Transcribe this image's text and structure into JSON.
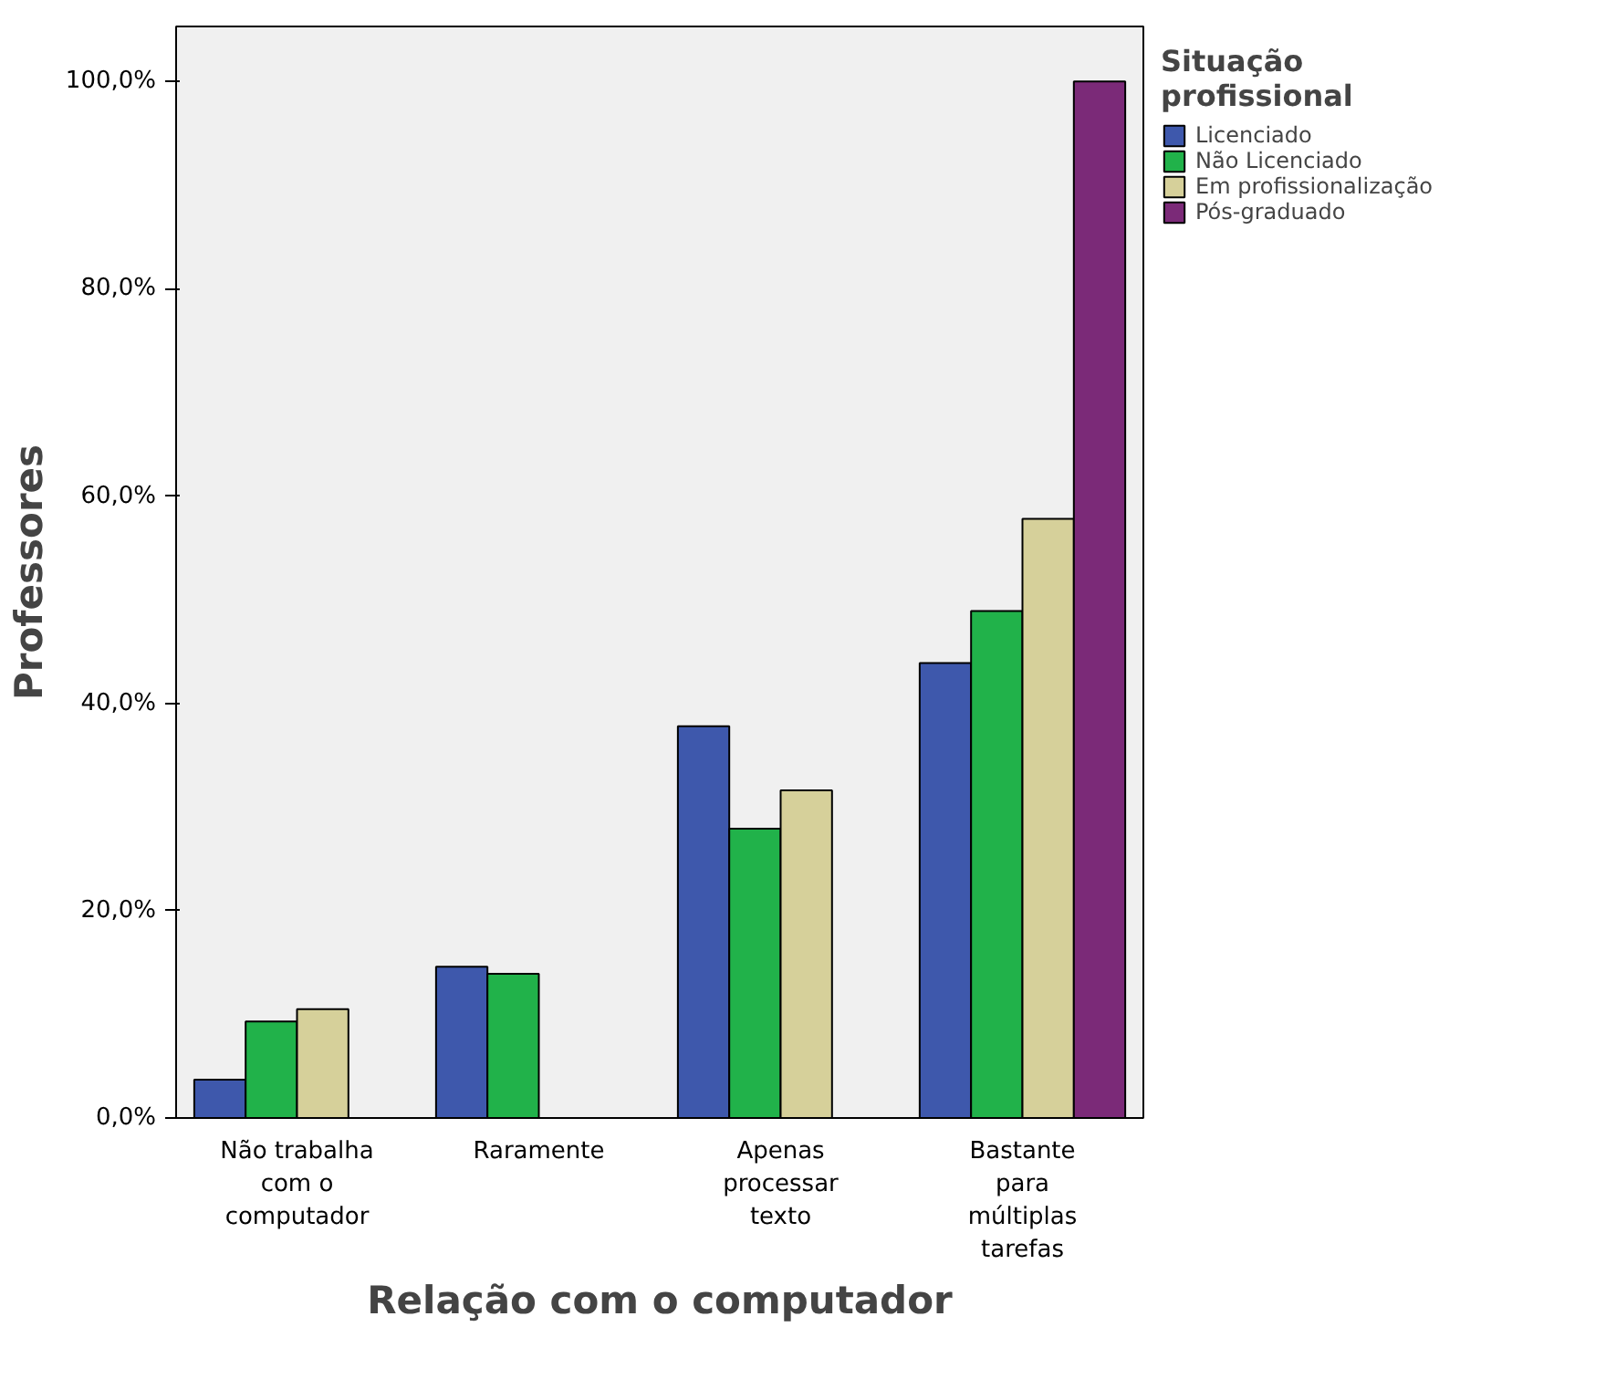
{
  "chart_data": {
    "type": "bar",
    "xlabel": "Relação com o computador",
    "ylabel": "Professores",
    "legend_title": "Situação\nprofissional",
    "categories": [
      "Não trabalha\ncom o\ncomputador",
      "Raramente",
      "Apenas\nprocessar\ntexto",
      "Bastante\npara\nmúltiplas\ntarefas"
    ],
    "series": [
      {
        "name": "Licenciado",
        "color": "#3e58ac",
        "values": [
          3.7,
          14.6,
          37.8,
          43.9
        ]
      },
      {
        "name": "Não Licenciado",
        "color": "#21b24a",
        "values": [
          9.3,
          13.9,
          27.9,
          48.9
        ]
      },
      {
        "name": "Em profissionalização",
        "color": "#d6d09a",
        "values": [
          10.5,
          null,
          31.6,
          57.8
        ]
      },
      {
        "name": "Pós-graduado",
        "color": "#7b2a78",
        "values": [
          null,
          null,
          null,
          100.0
        ]
      }
    ],
    "ylim": [
      0,
      105.3
    ],
    "yticks": [
      {
        "value": 0,
        "label": "0,0%"
      },
      {
        "value": 20,
        "label": "20,0%"
      },
      {
        "value": 40,
        "label": "40,0%"
      },
      {
        "value": 60,
        "label": "60,0%"
      },
      {
        "value": 80,
        "label": "80,0%"
      },
      {
        "value": 100,
        "label": "100,0%"
      }
    ],
    "legend": "right",
    "grid": false
  }
}
